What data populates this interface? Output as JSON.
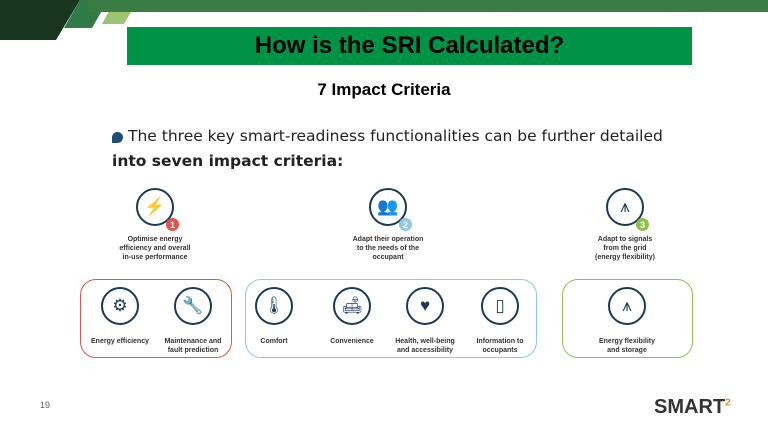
{
  "title": "How is the SRI Calculated?",
  "subtitle": "7 Impact Criteria",
  "bullet": {
    "line1": "The three key smart-readiness functionalities can be further detailed",
    "line2": "into seven impact criteria:"
  },
  "functionalities": [
    {
      "num": "1",
      "icon": "lightning-icon",
      "color": "#e2544a",
      "text": [
        "Optimise energy",
        "efficiency and overall",
        "in-use performance"
      ]
    },
    {
      "num": "2",
      "icon": "people-icon",
      "color": "#8ec8ea",
      "text": [
        "Adapt their operation",
        "to the needs of the",
        "occupant"
      ]
    },
    {
      "num": "3",
      "icon": "power-pylon-icon",
      "color": "#8dc04f",
      "text": [
        "Adapt to signals",
        "from the grid",
        "(energy flexibility)"
      ]
    }
  ],
  "criteria": [
    {
      "icon": "sun-gear-icon",
      "text": [
        "Energy efficiency",
        ""
      ]
    },
    {
      "icon": "wrench-icon",
      "text": [
        "Maintenance and",
        "fault prediction"
      ]
    },
    {
      "icon": "thermometer-icon",
      "text": [
        "Comfort",
        ""
      ]
    },
    {
      "icon": "sofa-icon",
      "text": [
        "Convenience",
        ""
      ]
    },
    {
      "icon": "heart-pulse-icon",
      "text": [
        "Health, well-being",
        "and accessibility"
      ]
    },
    {
      "icon": "smartphone-icon",
      "text": [
        "Information to",
        "occupants"
      ]
    },
    {
      "icon": "power-pylon-icon",
      "text": [
        "Energy flexibility",
        "and storage"
      ]
    }
  ],
  "colors": {
    "red": "#e2544a",
    "blue": "#8ec8ea",
    "green": "#8dc04f",
    "title_bg": "#009245"
  },
  "page_number": "19",
  "logo": {
    "text": "SMART",
    "superscript": "2"
  }
}
